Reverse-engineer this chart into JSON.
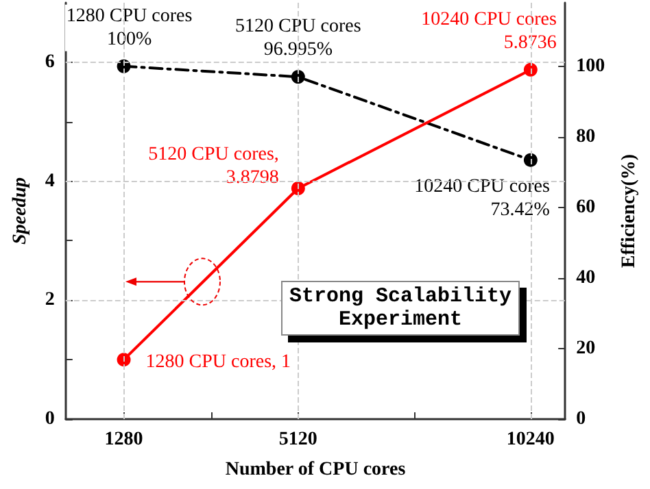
{
  "chart_data": {
    "type": "line",
    "xlabel": "Number of CPU cores",
    "ylabel": "Speedup",
    "y2label": "Efficiency(%)",
    "x": [
      1280,
      5120,
      10240
    ],
    "xlim": [
      0,
      11000
    ],
    "xticks": [
      1280,
      {
        "value": 3200,
        "label": null
      },
      5120,
      {
        "value": 7680,
        "label": null
      },
      10240
    ],
    "ylim": [
      0,
      7
    ],
    "yticks": [
      0,
      {
        "value": 1,
        "label": null
      },
      2,
      {
        "value": 3,
        "label": null
      },
      4,
      {
        "value": 5,
        "label": null
      },
      6
    ],
    "y2lim": [
      0,
      118
    ],
    "y2ticks": [
      0,
      20,
      40,
      60,
      80,
      100
    ],
    "grid": true,
    "marker": "circle",
    "series": [
      {
        "color": "#ff0000",
        "values": [
          1,
          3.8798,
          5.8736
        ],
        "line_style": "solid",
        "value_labels": [
          "1280 CPU cores, 1",
          "5120 CPU cores,\n3.8798",
          "10240 CPU cores\n5.8736"
        ]
      },
      {
        "color": "#000000",
        "values": [
          100,
          96.995,
          73.42
        ],
        "axis": "y2",
        "line_style": "dashed",
        "value_labels": [
          "1280 CPU cores\n100%",
          "5120 CPU cores\n96.995%",
          "10240 CPU cores\n73.42%"
        ]
      }
    ],
    "annotations": [
      "Strong Scalability\nExperiment"
    ]
  }
}
